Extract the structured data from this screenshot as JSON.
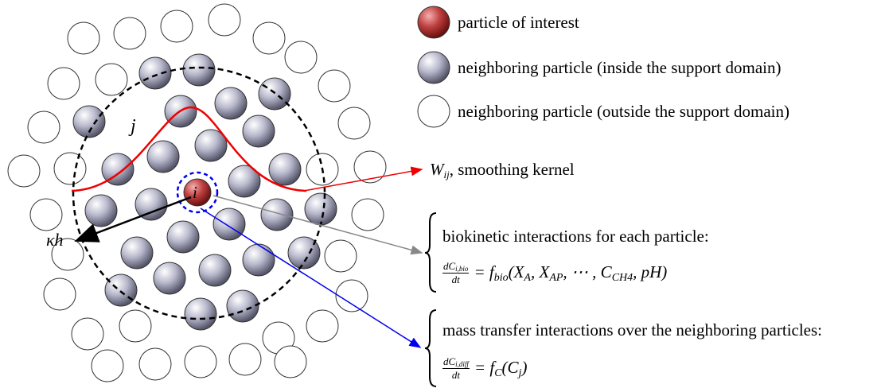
{
  "legend": [
    "particle of interest",
    "neighboring particle (inside the support domain)",
    "neighboring particle (outside the support domain)"
  ],
  "labels": {
    "i": "i",
    "j": "j",
    "radius": "κh"
  },
  "kernel": {
    "symbol": "W",
    "subscript": "ij",
    "text": ", smoothing kernel"
  },
  "biokinetic": {
    "title": "biokinetic interactions for each particle:",
    "equation": {
      "numerator": "dC",
      "numerator_sub": "i,bio",
      "denominator": "dt",
      "rhs": [
        "= f",
        "bio",
        "(X",
        "A",
        ", X",
        "AP",
        ", ⋯ , C",
        "CH4",
        ", pH)"
      ]
    }
  },
  "mass_transfer": {
    "title": "mass transfer interactions over the neighboring particles:",
    "equation": {
      "numerator": "dC",
      "numerator_sub": "i,diff",
      "denominator": "dt",
      "rhs": [
        "= f",
        "C",
        "(C",
        "j",
        ")"
      ]
    }
  }
}
